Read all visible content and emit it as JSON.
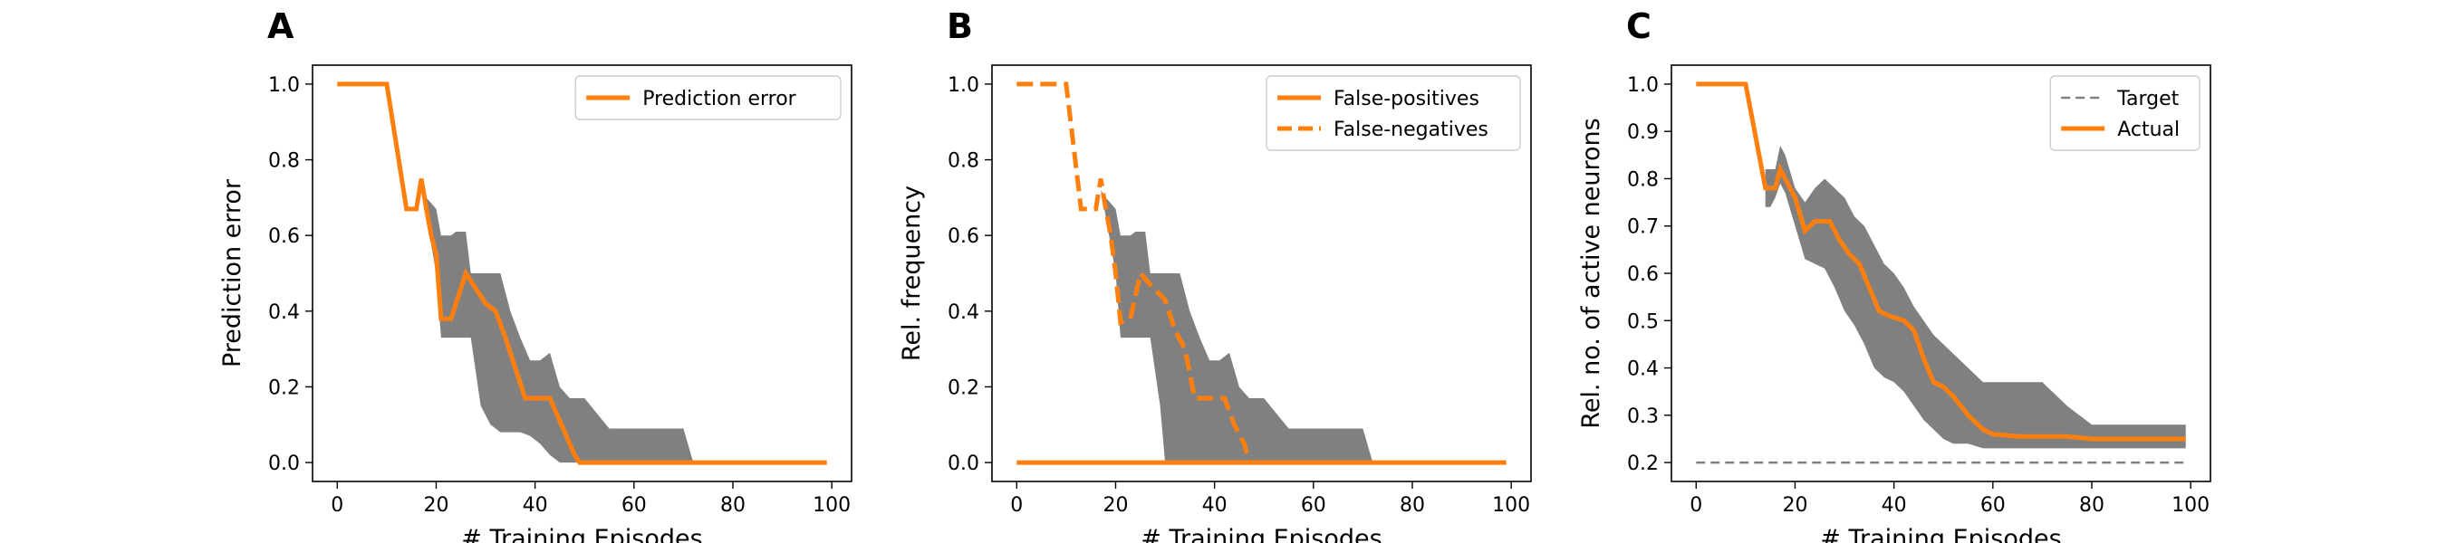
{
  "chart_data": [
    {
      "panel": "A",
      "type": "line",
      "xlabel": "# Training Episodes",
      "ylabel": "Prediction error",
      "xlim": [
        -5,
        104
      ],
      "ylim": [
        -0.05,
        1.05
      ],
      "xticks": [
        0,
        20,
        40,
        60,
        80,
        100
      ],
      "yticks": [
        0.0,
        0.2,
        0.4,
        0.6,
        0.8,
        1.0
      ],
      "ytick_decimals": 1,
      "legend_position": "top-right",
      "series": [
        {
          "name": "Prediction error",
          "color": "#ff7f0e",
          "dash": "solid",
          "x": [
            0,
            10,
            14,
            16,
            17,
            18,
            19,
            20,
            21,
            23,
            26,
            30,
            32,
            34,
            38,
            40,
            42,
            43,
            46,
            48,
            49,
            60,
            80,
            99
          ],
          "y": [
            1.0,
            1.0,
            0.67,
            0.67,
            0.75,
            0.67,
            0.6,
            0.55,
            0.38,
            0.38,
            0.5,
            0.42,
            0.4,
            0.33,
            0.17,
            0.17,
            0.17,
            0.17,
            0.08,
            0.02,
            0.0,
            0.0,
            0.0,
            0.0
          ]
        }
      ],
      "band": {
        "color": "#808080",
        "x": [
          17,
          18,
          20,
          21,
          23,
          24,
          26,
          27,
          29,
          31,
          33,
          35,
          37,
          39,
          41,
          43,
          45,
          47,
          50,
          55,
          60,
          65,
          70,
          72,
          75
        ],
        "upper": [
          0.72,
          0.7,
          0.67,
          0.6,
          0.6,
          0.61,
          0.61,
          0.5,
          0.5,
          0.5,
          0.5,
          0.4,
          0.33,
          0.27,
          0.27,
          0.29,
          0.2,
          0.17,
          0.17,
          0.09,
          0.09,
          0.09,
          0.09,
          0.0,
          0.0
        ],
        "lower": [
          0.72,
          0.65,
          0.5,
          0.33,
          0.33,
          0.33,
          0.33,
          0.33,
          0.15,
          0.1,
          0.08,
          0.08,
          0.08,
          0.07,
          0.05,
          0.02,
          0.0,
          0.0,
          0.0,
          0.0,
          0.0,
          0.0,
          0.0,
          0.0,
          0.0
        ]
      }
    },
    {
      "panel": "B",
      "type": "line",
      "xlabel": "# Training Episodes",
      "ylabel": "Rel. frequency",
      "xlim": [
        -5,
        104
      ],
      "ylim": [
        -0.05,
        1.05
      ],
      "xticks": [
        0,
        20,
        40,
        60,
        80,
        100
      ],
      "yticks": [
        0.0,
        0.2,
        0.4,
        0.6,
        0.8,
        1.0
      ],
      "ytick_decimals": 1,
      "legend_position": "top-right",
      "series": [
        {
          "name": "False-positives",
          "color": "#ff7f0e",
          "dash": "solid",
          "x": [
            0,
            99
          ],
          "y": [
            0.0,
            0.0
          ]
        },
        {
          "name": "False-negatives",
          "color": "#ff7f0e",
          "dash": "dashed",
          "x": [
            0,
            10,
            13,
            14,
            16,
            17,
            18,
            19,
            20,
            21,
            23,
            25,
            27,
            30,
            32,
            34,
            36,
            38,
            40,
            42,
            44,
            46,
            47
          ],
          "y": [
            1.0,
            1.0,
            0.67,
            0.67,
            0.67,
            0.75,
            0.67,
            0.6,
            0.5,
            0.37,
            0.38,
            0.5,
            0.47,
            0.43,
            0.35,
            0.3,
            0.17,
            0.17,
            0.17,
            0.17,
            0.1,
            0.05,
            0.0
          ]
        }
      ],
      "band": {
        "color": "#808080",
        "x": [
          17,
          18,
          20,
          21,
          23,
          24,
          26,
          27,
          29,
          30,
          31,
          33,
          35,
          37,
          39,
          41,
          43,
          45,
          47,
          50,
          55,
          60,
          65,
          70,
          72,
          75
        ],
        "upper": [
          0.72,
          0.7,
          0.67,
          0.6,
          0.6,
          0.61,
          0.61,
          0.5,
          0.5,
          0.5,
          0.5,
          0.5,
          0.4,
          0.33,
          0.27,
          0.27,
          0.29,
          0.2,
          0.17,
          0.17,
          0.09,
          0.09,
          0.09,
          0.09,
          0.0,
          0.0
        ],
        "lower": [
          0.72,
          0.65,
          0.5,
          0.33,
          0.33,
          0.33,
          0.33,
          0.33,
          0.15,
          0.0,
          0.0,
          0.0,
          0.0,
          0.0,
          0.0,
          0.0,
          0.0,
          0.0,
          0.0,
          0.0,
          0.0,
          0.0,
          0.0,
          0.0,
          0.0,
          0.0
        ]
      }
    },
    {
      "panel": "C",
      "type": "line",
      "xlabel": "# Training Episodes",
      "ylabel": "Rel. no. of active neurons",
      "xlim": [
        -5,
        104
      ],
      "ylim": [
        0.16,
        1.04
      ],
      "xticks": [
        0,
        20,
        40,
        60,
        80,
        100
      ],
      "yticks": [
        0.2,
        0.3,
        0.4,
        0.5,
        0.6,
        0.7,
        0.8,
        0.9,
        1.0
      ],
      "ytick_decimals": 1,
      "legend_position": "top-right",
      "series": [
        {
          "name": "Target",
          "color": "#808080",
          "dash": "dashed",
          "x": [
            0,
            99
          ],
          "y": [
            0.2,
            0.2
          ]
        },
        {
          "name": "Actual",
          "color": "#ff7f0e",
          "dash": "solid",
          "x": [
            0,
            10,
            14,
            16,
            17,
            20,
            22,
            24,
            27,
            29,
            31,
            33,
            35,
            37,
            39,
            42,
            44,
            46,
            48,
            50,
            52,
            55,
            58,
            60,
            65,
            70,
            75,
            80,
            90,
            99
          ],
          "y": [
            1.0,
            1.0,
            0.78,
            0.78,
            0.82,
            0.76,
            0.69,
            0.71,
            0.71,
            0.67,
            0.64,
            0.62,
            0.57,
            0.52,
            0.51,
            0.5,
            0.48,
            0.42,
            0.37,
            0.36,
            0.34,
            0.3,
            0.27,
            0.26,
            0.255,
            0.255,
            0.255,
            0.25,
            0.25,
            0.25
          ]
        }
      ],
      "band": {
        "color": "#808080",
        "x": [
          14,
          15,
          16,
          17,
          18,
          20,
          22,
          24,
          26,
          28,
          30,
          32,
          34,
          36,
          38,
          40,
          42,
          44,
          46,
          48,
          50,
          52,
          55,
          58,
          60,
          65,
          70,
          75,
          80,
          90,
          99
        ],
        "upper": [
          0.82,
          0.82,
          0.82,
          0.87,
          0.85,
          0.78,
          0.75,
          0.78,
          0.8,
          0.78,
          0.76,
          0.72,
          0.7,
          0.66,
          0.62,
          0.6,
          0.57,
          0.53,
          0.5,
          0.47,
          0.45,
          0.43,
          0.4,
          0.37,
          0.37,
          0.37,
          0.37,
          0.32,
          0.28,
          0.28,
          0.28
        ],
        "lower": [
          0.74,
          0.74,
          0.76,
          0.79,
          0.77,
          0.7,
          0.63,
          0.62,
          0.61,
          0.57,
          0.52,
          0.49,
          0.45,
          0.4,
          0.38,
          0.37,
          0.35,
          0.32,
          0.29,
          0.27,
          0.25,
          0.24,
          0.24,
          0.23,
          0.23,
          0.23,
          0.23,
          0.23,
          0.23,
          0.23,
          0.23
        ]
      }
    }
  ]
}
